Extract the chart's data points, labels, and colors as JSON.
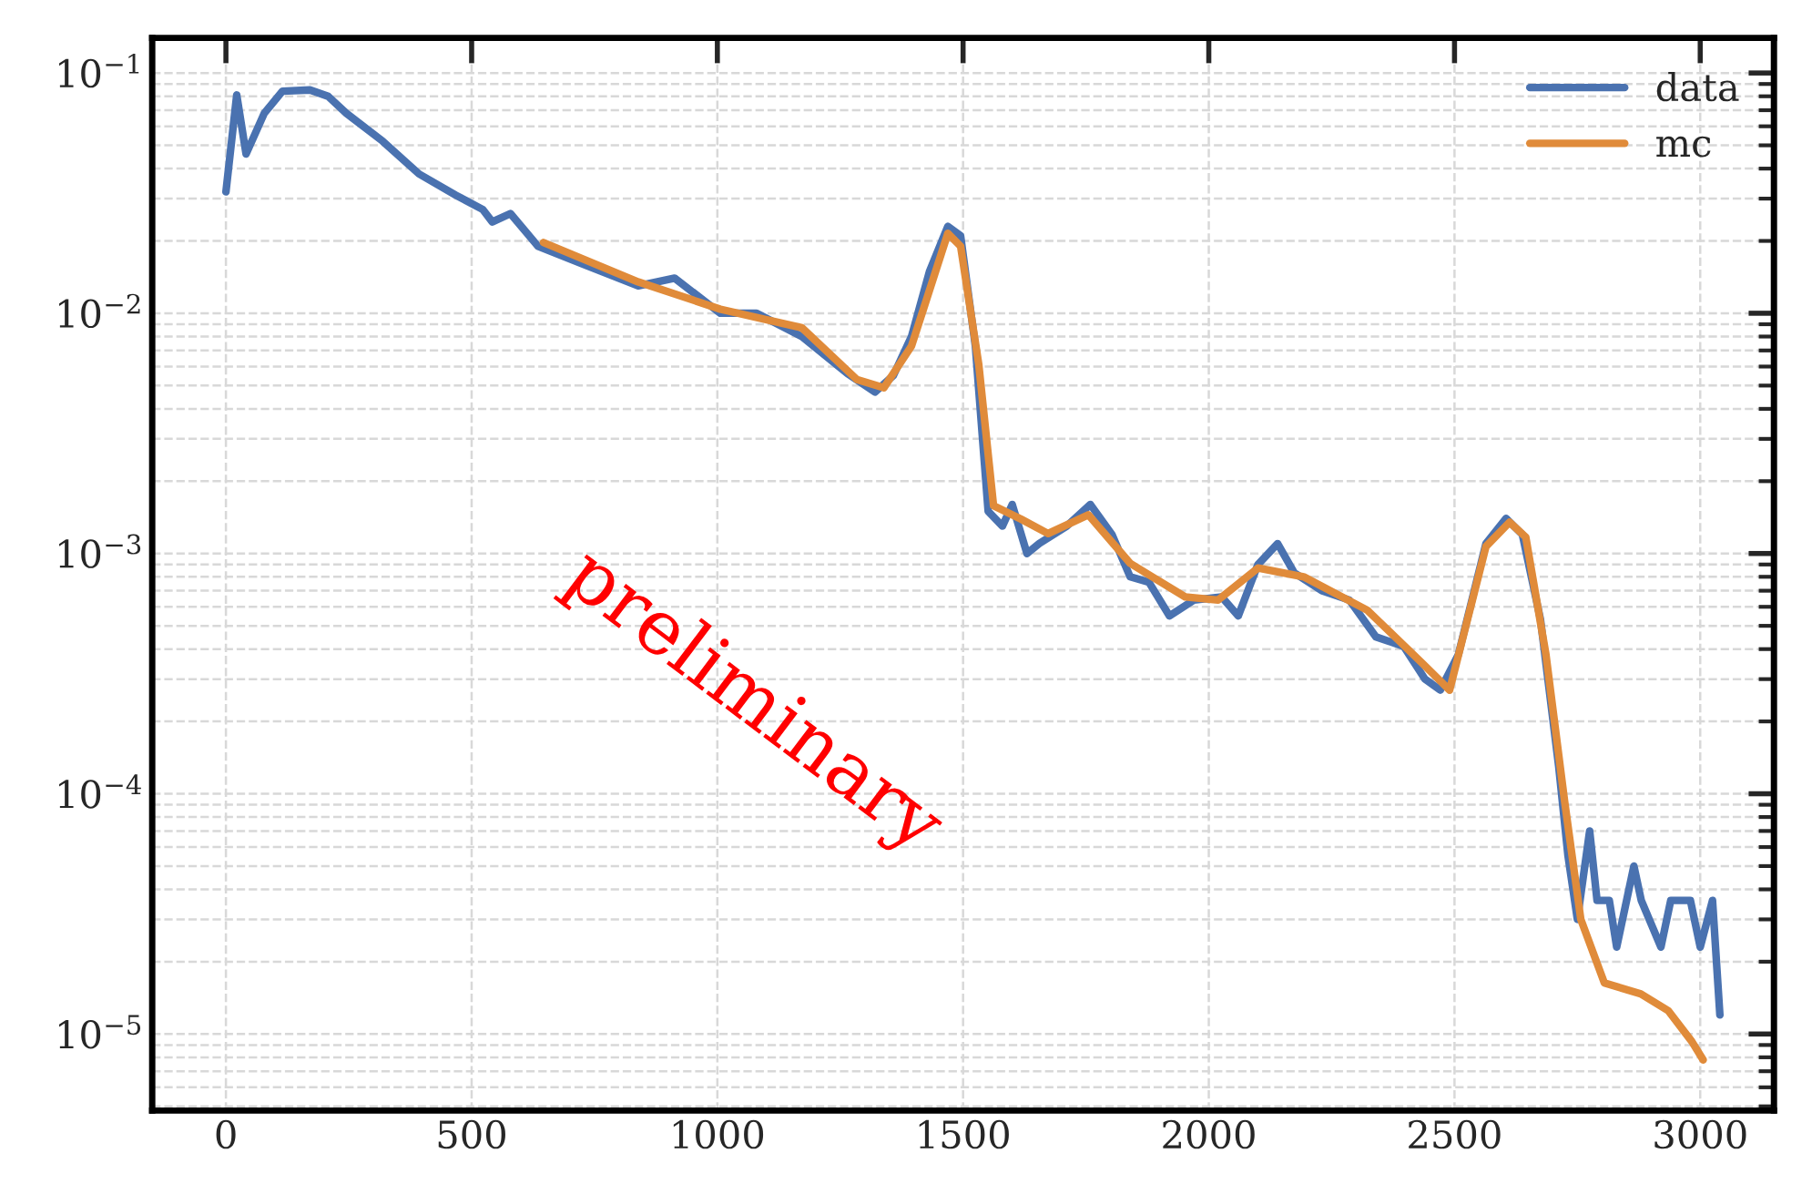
{
  "chart_data": {
    "type": "line",
    "xlim": [
      -150,
      3150
    ],
    "xticks": [
      0,
      500,
      1000,
      1500,
      2000,
      2500,
      3000
    ],
    "ylim": [
      4.8e-06,
      0.14
    ],
    "yticks": [
      {
        "value": 1e-05,
        "label": "10$^{−5}$"
      },
      {
        "value": 0.0001,
        "label": "10$^{−4}$"
      },
      {
        "value": 0.001,
        "label": "10$^{−3}$"
      },
      {
        "value": 0.01,
        "label": "10$^{−2}$"
      },
      {
        "value": 0.1,
        "label": "10$^{−1}$"
      }
    ],
    "log": "y",
    "grid": true,
    "legend": "top right",
    "line_style": "solid",
    "marker": "none",
    "annotations": [
      "preliminary"
    ],
    "series": [
      {
        "name": "data",
        "color": "#4a72b0",
        "x": [
          0,
          22,
          41,
          78,
          115,
          171,
          208,
          245,
          319,
          393,
          468,
          523,
          542,
          579,
          635,
          727,
          839,
          913,
          1006,
          1080,
          1172,
          1265,
          1321,
          1358,
          1395,
          1432,
          1469,
          1495,
          1525,
          1551,
          1580,
          1600,
          1630,
          1655,
          1711,
          1759,
          1803,
          1840,
          1878,
          1920,
          1970,
          2026,
          2060,
          2100,
          2140,
          2174,
          2230,
          2286,
          2340,
          2397,
          2440,
          2471,
          2508,
          2564,
          2605,
          2638,
          2675,
          2712,
          2731,
          2750,
          2760,
          2775,
          2790,
          2800,
          2815,
          2830,
          2850,
          2865,
          2880,
          2900,
          2920,
          2940,
          2960,
          2980,
          3000,
          3010,
          3025,
          3040
        ],
        "values": [
          0.032,
          0.081,
          0.046,
          0.068,
          0.084,
          0.085,
          0.08,
          0.068,
          0.052,
          0.038,
          0.031,
          0.027,
          0.024,
          0.026,
          0.019,
          0.016,
          0.013,
          0.014,
          0.01,
          0.01,
          0.008,
          0.0056,
          0.0047,
          0.0055,
          0.008,
          0.015,
          0.023,
          0.021,
          0.0073,
          0.0015,
          0.0013,
          0.0016,
          0.001,
          0.0011,
          0.0013,
          0.0016,
          0.0012,
          0.0008,
          0.00076,
          0.00055,
          0.00064,
          0.00066,
          0.00055,
          0.0009,
          0.0011,
          0.00083,
          0.0007,
          0.00064,
          0.00045,
          0.00041,
          0.0003,
          0.00027,
          0.00038,
          0.0011,
          0.0014,
          0.0012,
          0.00053,
          0.00013,
          5.5e-05,
          3e-05,
          null,
          7e-05,
          3.6e-05,
          null,
          3.6e-05,
          2.3e-05,
          null,
          5e-05,
          3.6e-05,
          null,
          2.3e-05,
          3.6e-05,
          null,
          3.6e-05,
          2.3e-05,
          null,
          3.6e-05,
          1.2e-05
        ]
      },
      {
        "name": "mc",
        "color": "#e08b3a",
        "x": [
          646,
          839,
          1006,
          1172,
          1284,
          1339,
          1395,
          1469,
          1495,
          1532,
          1562,
          1618,
          1673,
          1755,
          1840,
          1952,
          2019,
          2100,
          2193,
          2323,
          2434,
          2490,
          2564,
          2612,
          2645,
          2686,
          2724,
          2757,
          2805,
          2879,
          2935,
          2983,
          3006
        ],
        "values": [
          0.0197,
          0.0135,
          0.0104,
          0.0087,
          0.0053,
          0.0049,
          0.0073,
          0.0215,
          0.019,
          0.0061,
          0.00158,
          0.00139,
          0.00121,
          0.00145,
          0.00091,
          0.00066,
          0.00064,
          0.00087,
          0.0008,
          0.00058,
          0.00035,
          0.00027,
          0.00107,
          0.00135,
          0.00117,
          0.00038,
          9.3e-05,
          3e-05,
          1.63e-05,
          1.47e-05,
          1.25e-05,
          9.3e-06,
          7.8e-06
        ]
      }
    ]
  }
}
